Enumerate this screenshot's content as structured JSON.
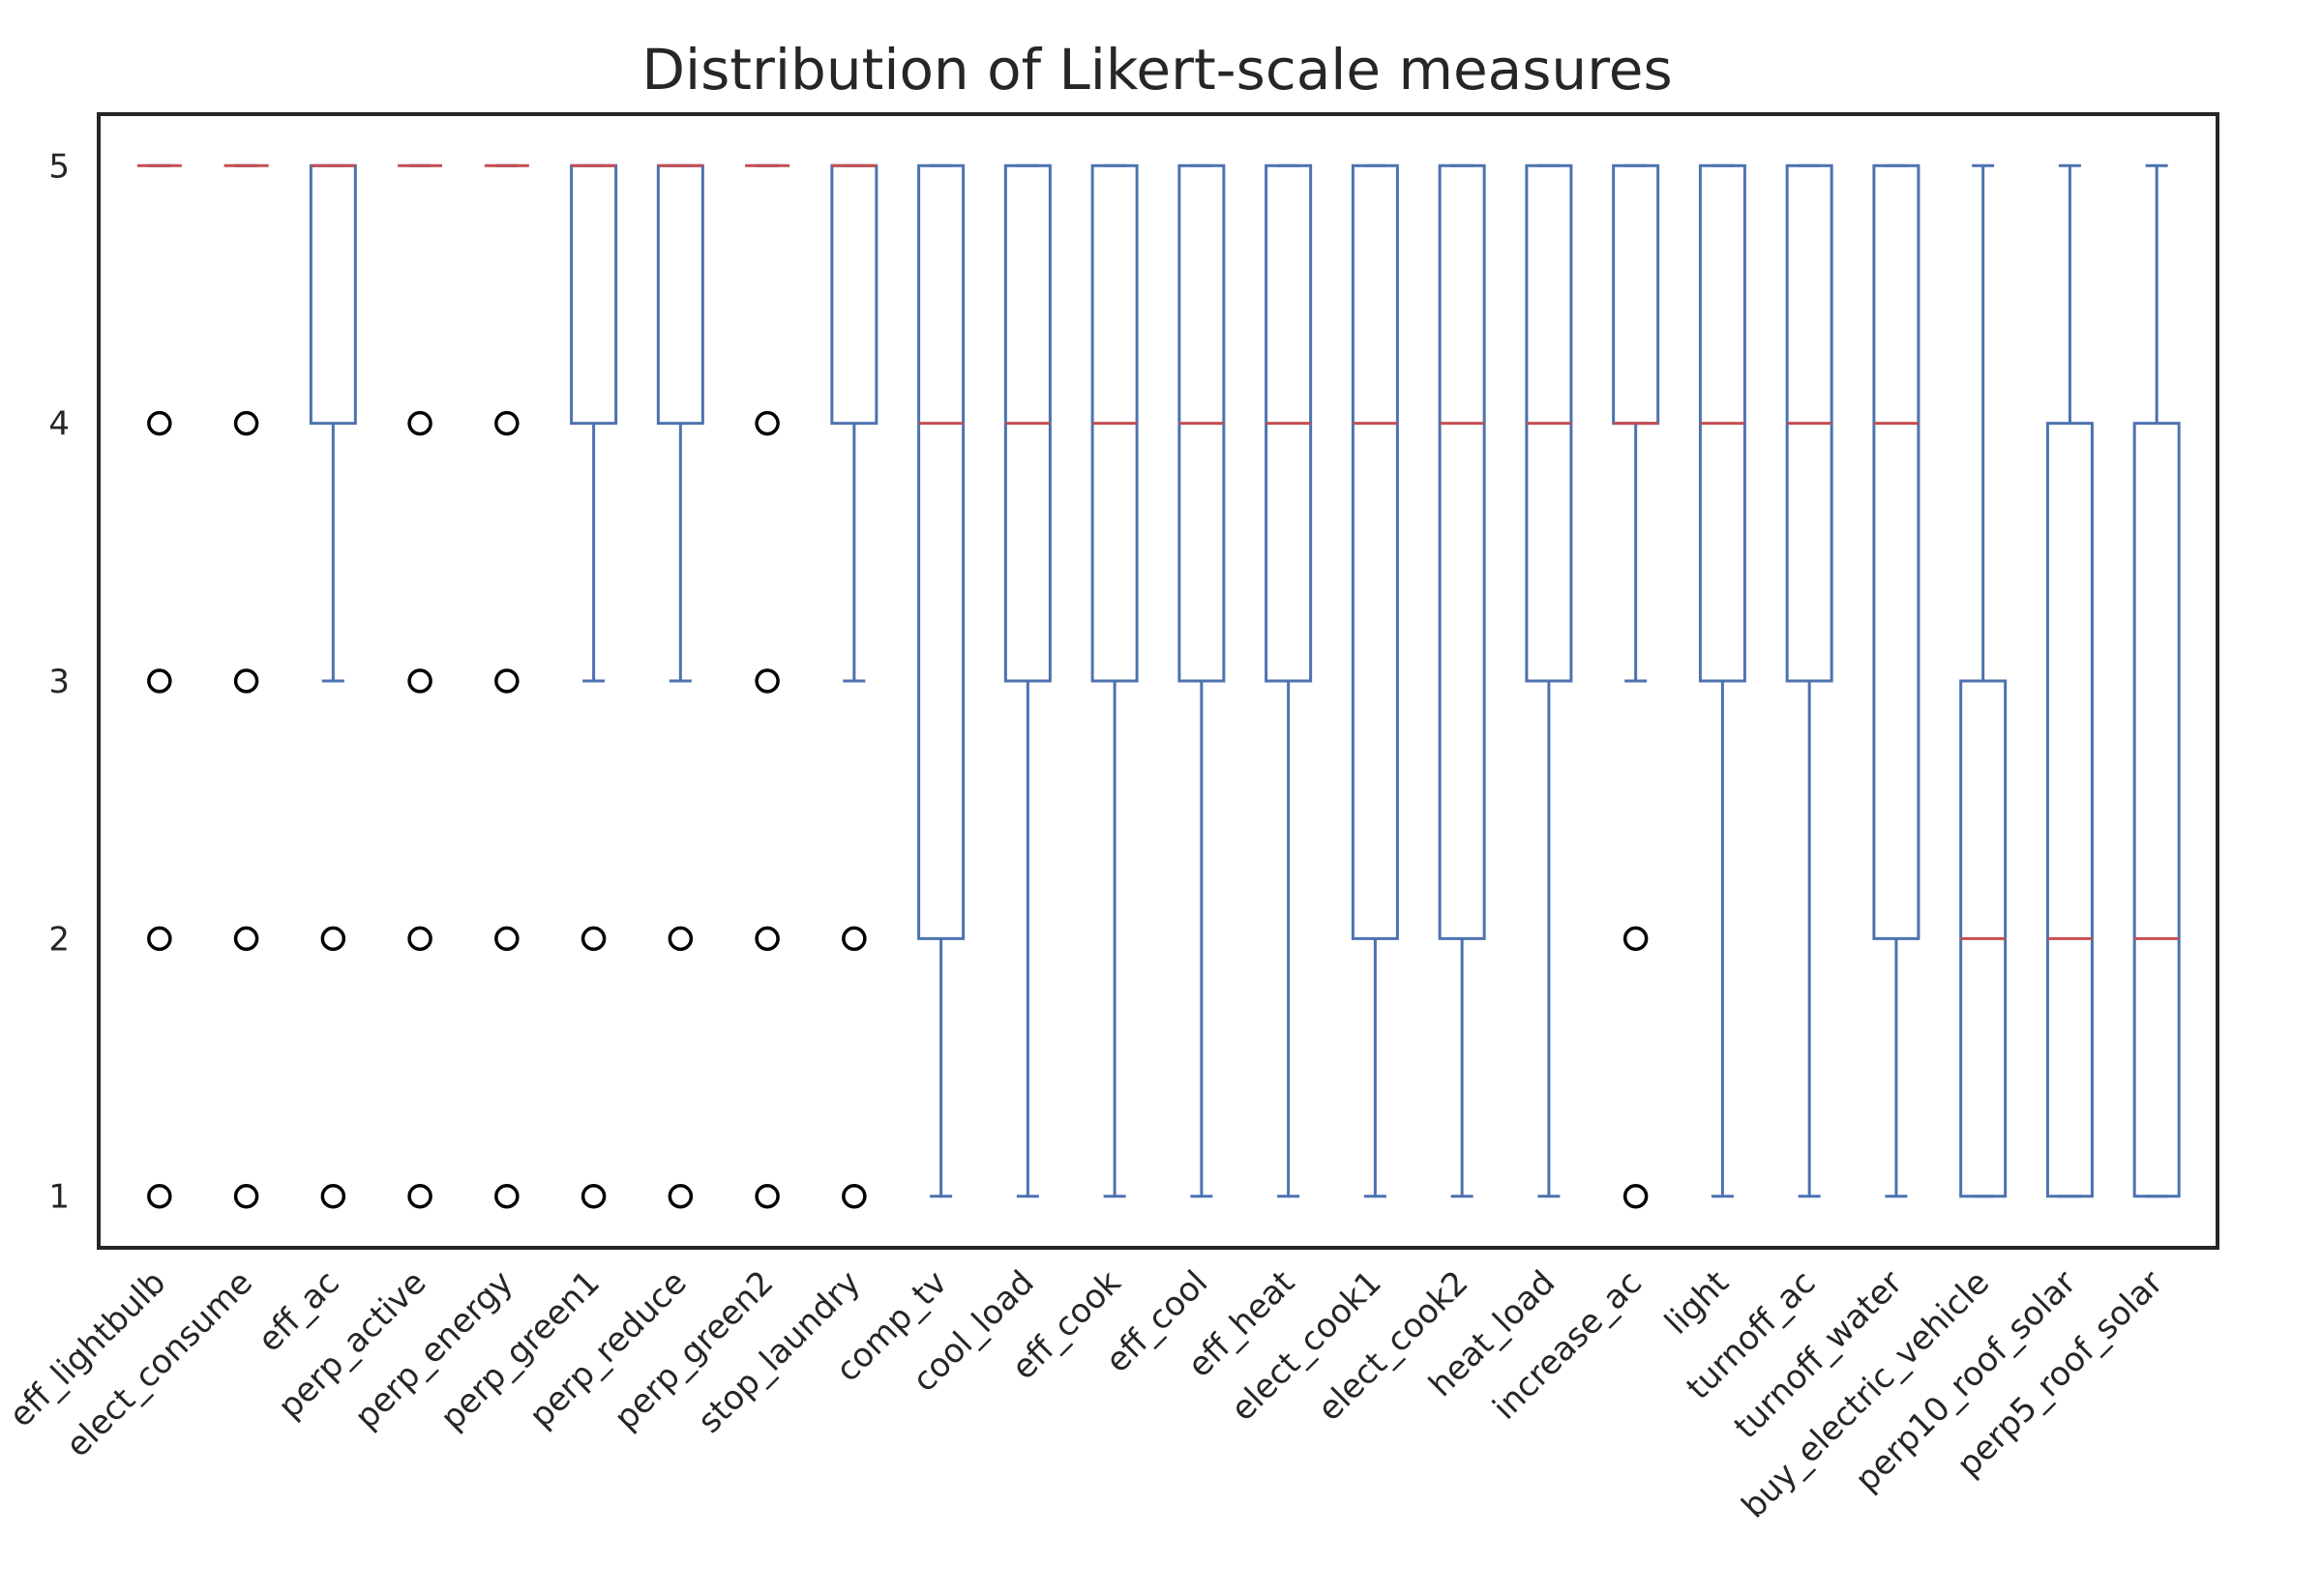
{
  "chart_data": {
    "type": "boxplot",
    "title": "Distribution of Likert-scale measures",
    "xlabel": "",
    "ylabel": "",
    "ylim": [
      0.8,
      5.2
    ],
    "yticks": [
      1,
      2,
      3,
      4,
      5
    ],
    "grid": false,
    "legend": "none",
    "colors": {
      "box": "#4c72b0",
      "median": "#c44e52",
      "flier": "#000000",
      "frame": "#262626",
      "text": "#262626"
    },
    "series": [
      {
        "name": "eff_lightbulb",
        "q1": 5,
        "median": 5,
        "q3": 5,
        "whisker_low": 5,
        "whisker_high": 5,
        "fliers": [
          1,
          2,
          3,
          4
        ]
      },
      {
        "name": "elect_consume",
        "q1": 5,
        "median": 5,
        "q3": 5,
        "whisker_low": 5,
        "whisker_high": 5,
        "fliers": [
          1,
          2,
          3,
          4
        ]
      },
      {
        "name": "eff_ac",
        "q1": 4,
        "median": 5,
        "q3": 5,
        "whisker_low": 3,
        "whisker_high": 5,
        "fliers": [
          1,
          2
        ]
      },
      {
        "name": "perp_active",
        "q1": 5,
        "median": 5,
        "q3": 5,
        "whisker_low": 5,
        "whisker_high": 5,
        "fliers": [
          1,
          2,
          3,
          4
        ]
      },
      {
        "name": "perp_energy",
        "q1": 5,
        "median": 5,
        "q3": 5,
        "whisker_low": 5,
        "whisker_high": 5,
        "fliers": [
          1,
          2,
          3,
          4
        ]
      },
      {
        "name": "perp_green1",
        "q1": 4,
        "median": 5,
        "q3": 5,
        "whisker_low": 3,
        "whisker_high": 5,
        "fliers": [
          1,
          2
        ]
      },
      {
        "name": "perp_reduce",
        "q1": 4,
        "median": 5,
        "q3": 5,
        "whisker_low": 3,
        "whisker_high": 5,
        "fliers": [
          1,
          2
        ]
      },
      {
        "name": "perp_green2",
        "q1": 5,
        "median": 5,
        "q3": 5,
        "whisker_low": 5,
        "whisker_high": 5,
        "fliers": [
          1,
          2,
          3,
          4
        ]
      },
      {
        "name": "stop_laundry",
        "q1": 4,
        "median": 5,
        "q3": 5,
        "whisker_low": 3,
        "whisker_high": 5,
        "fliers": [
          1,
          2
        ]
      },
      {
        "name": "comp_tv",
        "q1": 2,
        "median": 4,
        "q3": 5,
        "whisker_low": 1,
        "whisker_high": 5,
        "fliers": []
      },
      {
        "name": "cool_load",
        "q1": 3,
        "median": 4,
        "q3": 5,
        "whisker_low": 1,
        "whisker_high": 5,
        "fliers": []
      },
      {
        "name": "eff_cook",
        "q1": 3,
        "median": 4,
        "q3": 5,
        "whisker_low": 1,
        "whisker_high": 5,
        "fliers": []
      },
      {
        "name": "eff_cool",
        "q1": 3,
        "median": 4,
        "q3": 5,
        "whisker_low": 1,
        "whisker_high": 5,
        "fliers": []
      },
      {
        "name": "eff_heat",
        "q1": 3,
        "median": 4,
        "q3": 5,
        "whisker_low": 1,
        "whisker_high": 5,
        "fliers": []
      },
      {
        "name": "elect_cook1",
        "q1": 2,
        "median": 4,
        "q3": 5,
        "whisker_low": 1,
        "whisker_high": 5,
        "fliers": []
      },
      {
        "name": "elect_cook2",
        "q1": 2,
        "median": 4,
        "q3": 5,
        "whisker_low": 1,
        "whisker_high": 5,
        "fliers": []
      },
      {
        "name": "heat_load",
        "q1": 3,
        "median": 4,
        "q3": 5,
        "whisker_low": 1,
        "whisker_high": 5,
        "fliers": []
      },
      {
        "name": "increase_ac",
        "q1": 4,
        "median": 4,
        "q3": 5,
        "whisker_low": 3,
        "whisker_high": 5,
        "fliers": [
          1,
          2
        ]
      },
      {
        "name": "light",
        "q1": 3,
        "median": 4,
        "q3": 5,
        "whisker_low": 1,
        "whisker_high": 5,
        "fliers": []
      },
      {
        "name": "turnoff_ac",
        "q1": 3,
        "median": 4,
        "q3": 5,
        "whisker_low": 1,
        "whisker_high": 5,
        "fliers": []
      },
      {
        "name": "turnoff_water",
        "q1": 2,
        "median": 4,
        "q3": 5,
        "whisker_low": 1,
        "whisker_high": 5,
        "fliers": []
      },
      {
        "name": "buy_electric_vehicle",
        "q1": 1,
        "median": 2,
        "q3": 3,
        "whisker_low": 1,
        "whisker_high": 5,
        "fliers": []
      },
      {
        "name": "perp10_roof_solar",
        "q1": 1,
        "median": 2,
        "q3": 4,
        "whisker_low": 1,
        "whisker_high": 5,
        "fliers": []
      },
      {
        "name": "perp5_roof_solar",
        "q1": 1,
        "median": 2,
        "q3": 4,
        "whisker_low": 1,
        "whisker_high": 5,
        "fliers": []
      }
    ]
  }
}
